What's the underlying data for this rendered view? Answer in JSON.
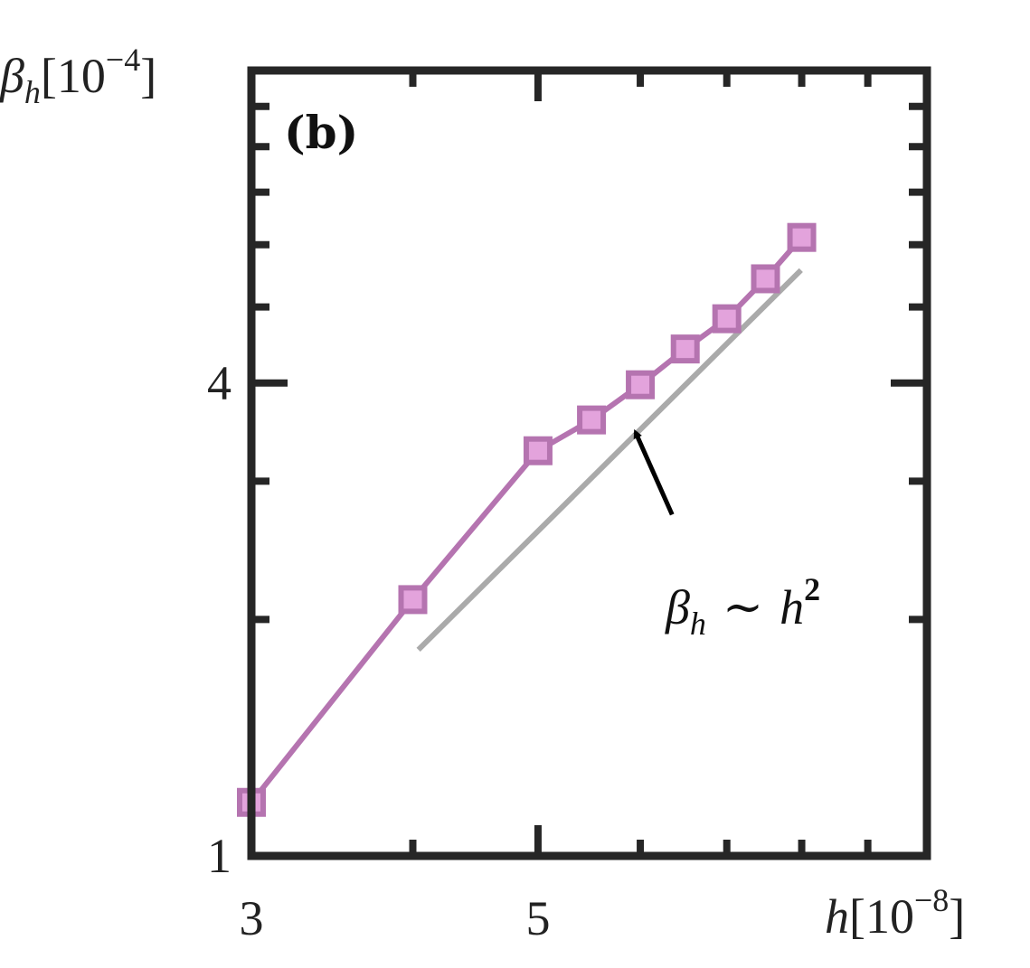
{
  "chart_data": {
    "type": "line",
    "xscale": "log",
    "yscale": "log",
    "xlim": [
      3,
      10
    ],
    "ylim": [
      1,
      10
    ],
    "xlabel": {
      "base": "h",
      "unit_prefix": "[10",
      "unit_exp": "−8",
      "unit_suffix": "]"
    },
    "ylabel": {
      "base": "β",
      "sub": "h",
      "unit_prefix": "[10",
      "unit_exp": "−4",
      "unit_suffix": "]"
    },
    "x_tick_labels": [
      {
        "value": 3,
        "label": "3"
      },
      {
        "value": 5,
        "label": "5"
      }
    ],
    "y_tick_labels": [
      {
        "value": 1,
        "label": "1"
      },
      {
        "value": 4,
        "label": "4"
      }
    ],
    "x_minor_ticks": [
      4,
      5,
      6,
      7,
      8,
      9
    ],
    "y_minor_ticks": [
      2,
      3,
      4,
      5,
      6,
      7,
      8,
      9
    ],
    "grid": false,
    "panel_label": "(b)",
    "series": [
      {
        "marker": "square",
        "line_color": "#b574b0",
        "marker_fill": "#e3a3dc",
        "marker_edge": "#b574b0",
        "x": [
          3.0,
          4.0,
          5.0,
          5.5,
          6.0,
          6.5,
          7.0,
          7.5,
          8.0
        ],
        "y": [
          1.17,
          2.12,
          3.28,
          3.59,
          3.98,
          4.42,
          4.83,
          5.43,
          6.13
        ]
      },
      {
        "role": "reference-line",
        "line_color": "#aaaaaa",
        "x": [
          4.04,
          7.99
        ],
        "y": [
          1.83,
          5.57
        ]
      }
    ],
    "annotations": [
      {
        "text_base": "β",
        "text_sub": "h",
        "text_op": "∼",
        "text_var": "h",
        "text_exp": "2",
        "arrow_from": [
          6.35,
          2.72
        ],
        "arrow_to": [
          5.95,
          3.46
        ]
      }
    ]
  }
}
